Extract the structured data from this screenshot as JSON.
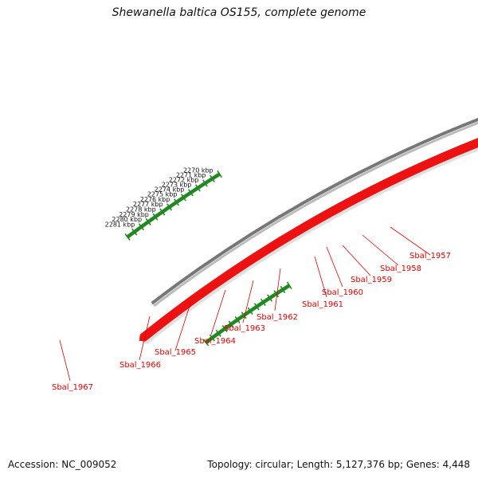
{
  "title": "Shewanella baltica OS155, complete genome",
  "footer": {
    "accession": "Accession: NC_009052",
    "summary": "Topology: circular; Length: 5,127,376 bp; Genes: 4,448"
  },
  "scale": {
    "unit": "kbp",
    "labels": [
      "2270 kbp",
      "2271 kbp",
      "2272 kbp",
      "2273 kbp",
      "2274 kbp",
      "2275 kbp",
      "2276 kbp",
      "2277 kbp",
      "2278 kbp",
      "2279 kbp",
      "2280 kbp",
      "2281 kbp"
    ]
  },
  "colors": {
    "gene_default": "#ee1111",
    "gene_lime": "#99ee33",
    "gene_orange": "#ff8800",
    "gene_gray": "#bbbbbb",
    "backbone": "#777777",
    "ticks": "#228822",
    "label": "#dd0000"
  },
  "genes": [
    {
      "label": "Sbal_1957"
    },
    {
      "label": "Sbal_1958"
    },
    {
      "label": "Sbal_1959"
    },
    {
      "label": "Sbal_1960"
    },
    {
      "label": "Sbal_1961"
    },
    {
      "label": "Sbal_1962"
    },
    {
      "label": "Sbal_1963"
    },
    {
      "label": "Sbal_1964"
    },
    {
      "label": "Sbal_1965"
    },
    {
      "label": "Sbal_1966"
    },
    {
      "label": "Sbal_1967"
    }
  ]
}
